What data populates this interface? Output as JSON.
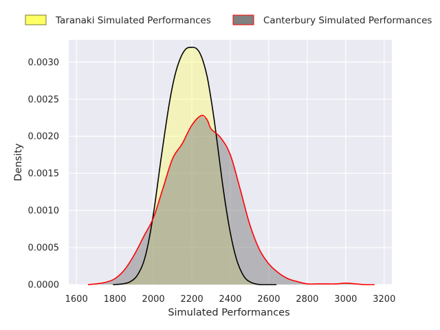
{
  "chart_data": {
    "type": "area",
    "title": "",
    "xlabel": "Simulated Performances",
    "ylabel": "Density",
    "xlim": [
      1560,
      3240
    ],
    "ylim": [
      0,
      0.0033
    ],
    "x_ticks": [
      1600,
      1800,
      2000,
      2200,
      2400,
      2600,
      2800,
      3000,
      3200
    ],
    "x_tick_labels": [
      "1600",
      "1800",
      "2000",
      "2200",
      "2400",
      "2600",
      "2800",
      "3000",
      "3200"
    ],
    "y_ticks": [
      0,
      0.0005,
      0.001,
      0.0015,
      0.002,
      0.0025,
      0.003
    ],
    "y_tick_labels": [
      "0.0000",
      "0.0005",
      "0.0010",
      "0.0015",
      "0.0020",
      "0.0025",
      "0.0030"
    ],
    "grid": true,
    "legend_position": "top",
    "background_color": "#eaeaf2",
    "series": [
      {
        "name": "Taranaki Simulated Performances",
        "line_color": "#000000",
        "fill_color": "#ffff66",
        "x": [
          1790,
          1840,
          1880,
          1920,
          1960,
          2000,
          2040,
          2080,
          2110,
          2140,
          2170,
          2200,
          2220,
          2240,
          2260,
          2280,
          2300,
          2320,
          2340,
          2360,
          2380,
          2400,
          2420,
          2440,
          2460,
          2480,
          2500,
          2530,
          2560,
          2600,
          2640
        ],
        "y": [
          0,
          1e-05,
          4e-05,
          0.00014,
          0.0004,
          0.00095,
          0.0017,
          0.0024,
          0.0028,
          0.00305,
          0.00318,
          0.0032,
          0.00319,
          0.00313,
          0.003,
          0.0028,
          0.0025,
          0.00215,
          0.00175,
          0.00135,
          0.001,
          0.0007,
          0.00046,
          0.00028,
          0.00016,
          8e-05,
          4e-05,
          1e-05,
          0,
          0,
          0
        ]
      },
      {
        "name": "Canterbury Simulated Performances",
        "line_color": "#ff0000",
        "fill_color": "#808080",
        "x": [
          1660,
          1700,
          1750,
          1800,
          1850,
          1900,
          1950,
          2000,
          2050,
          2100,
          2150,
          2200,
          2250,
          2280,
          2300,
          2350,
          2400,
          2450,
          2500,
          2550,
          2600,
          2650,
          2700,
          2750,
          2800,
          2850,
          2900,
          2950,
          3000,
          3050,
          3100,
          3150
        ],
        "y": [
          0,
          1e-05,
          3e-05,
          8e-05,
          0.0002,
          0.0004,
          0.00065,
          0.0009,
          0.0013,
          0.0017,
          0.0019,
          0.00215,
          0.00228,
          0.00222,
          0.0021,
          0.00198,
          0.00175,
          0.0013,
          0.00082,
          0.00048,
          0.00028,
          0.00016,
          8e-05,
          4e-05,
          1e-05,
          1e-05,
          1e-05,
          1e-05,
          2e-05,
          1e-05,
          0,
          0
        ]
      }
    ]
  }
}
